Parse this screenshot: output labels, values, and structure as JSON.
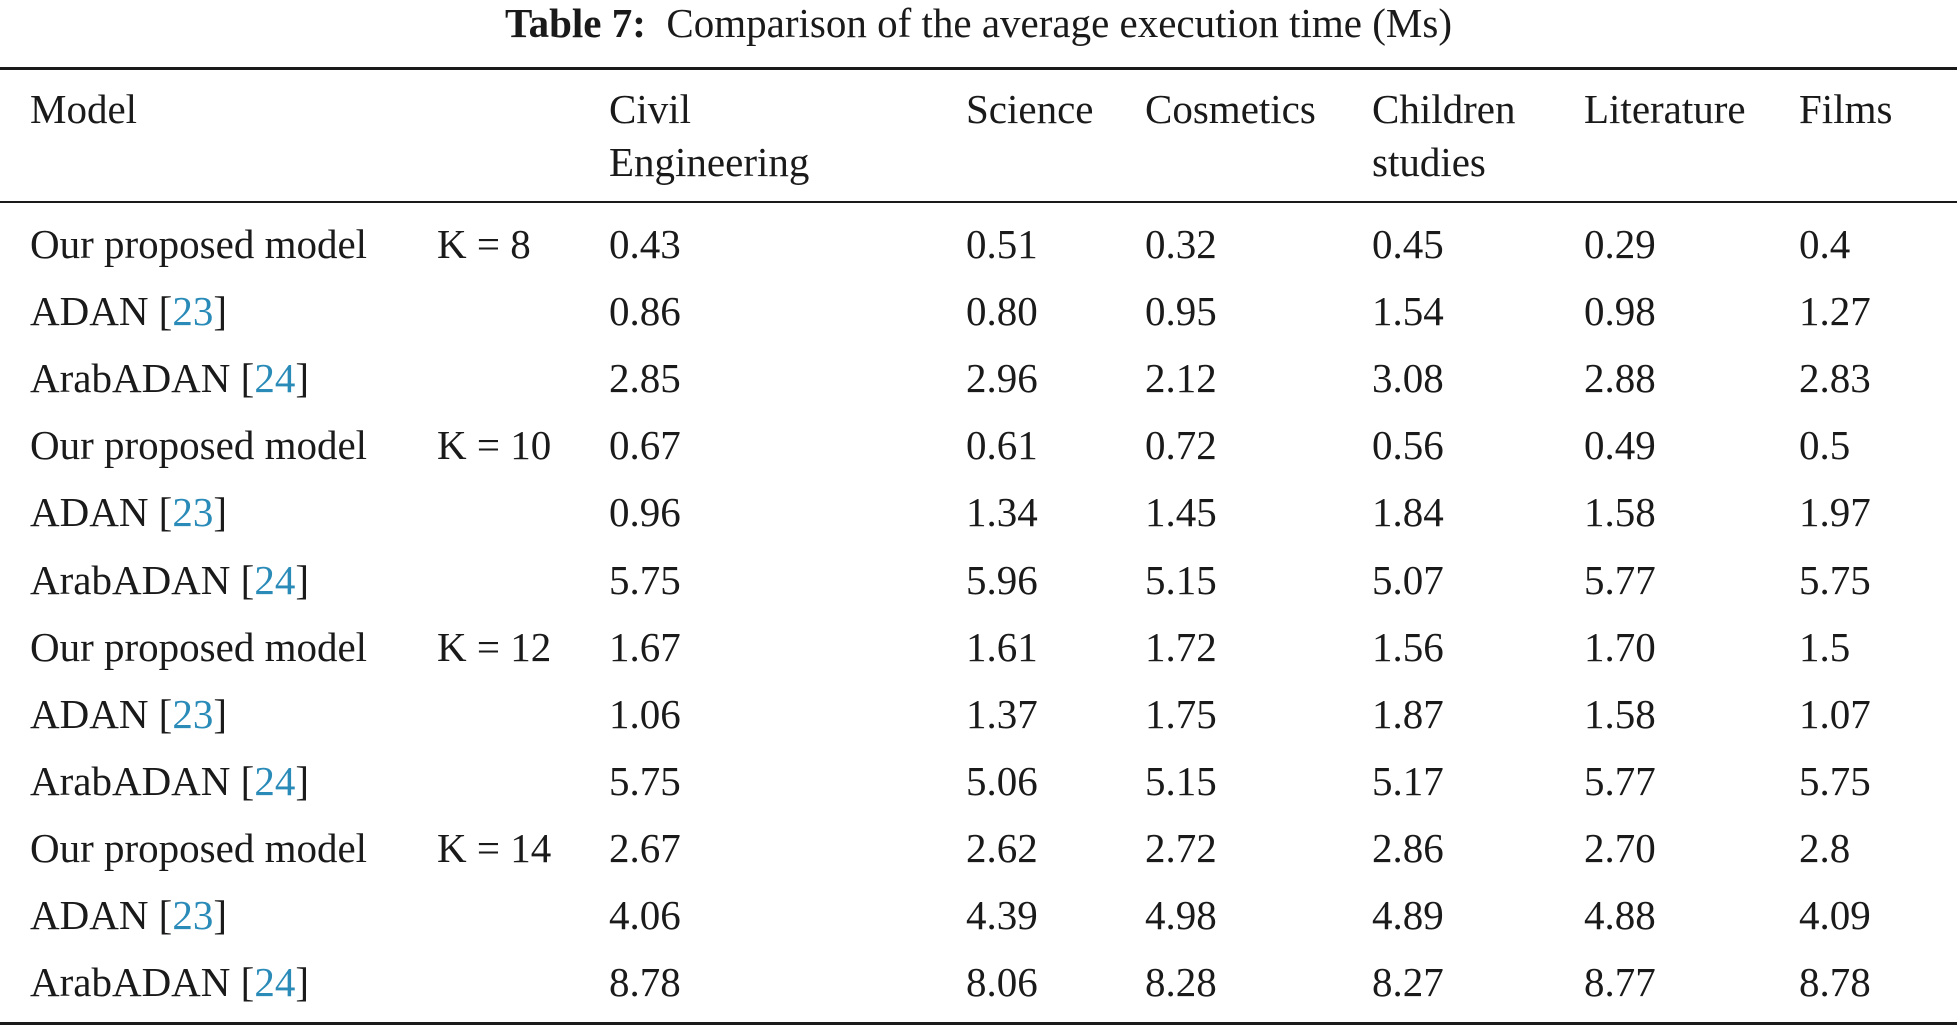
{
  "caption": {
    "label": "Table 7:",
    "text": "Comparison of the average execution time (Ms)"
  },
  "header": {
    "model": "Model",
    "civil_line1": "Civil",
    "civil_line2": "Engineering",
    "science": "Science",
    "cosmetics": "Cosmetics",
    "children_line1": "Children",
    "children_line2": "studies",
    "literature": "Literature",
    "films": "Films"
  },
  "rows": [
    {
      "model": "Our proposed model",
      "ref": "",
      "k": "K = 8",
      "civil": "0.43",
      "science": "0.51",
      "cosmetics": "0.32",
      "children": "0.45",
      "literature": "0.29",
      "films": "0.4"
    },
    {
      "model": "ADAN [",
      "ref": "23",
      "k": "",
      "civil": "0.86",
      "science": "0.80",
      "cosmetics": "0.95",
      "children": "1.54",
      "literature": "0.98",
      "films": "1.27"
    },
    {
      "model": "ArabADAN [",
      "ref": "24",
      "k": "",
      "civil": "2.85",
      "science": "2.96",
      "cosmetics": "2.12",
      "children": "3.08",
      "literature": "2.88",
      "films": "2.83"
    },
    {
      "model": "Our proposed model",
      "ref": "",
      "k": "K = 10",
      "civil": "0.67",
      "science": "0.61",
      "cosmetics": "0.72",
      "children": "0.56",
      "literature": "0.49",
      "films": "0.5"
    },
    {
      "model": "ADAN [",
      "ref": "23",
      "k": "",
      "civil": "0.96",
      "science": "1.34",
      "cosmetics": "1.45",
      "children": "1.84",
      "literature": "1.58",
      "films": "1.97"
    },
    {
      "model": "ArabADAN [",
      "ref": "24",
      "k": "",
      "civil": "5.75",
      "science": "5.96",
      "cosmetics": "5.15",
      "children": "5.07",
      "literature": "5.77",
      "films": "5.75"
    },
    {
      "model": "Our proposed model",
      "ref": "",
      "k": "K = 12",
      "civil": "1.67",
      "science": "1.61",
      "cosmetics": "1.72",
      "children": "1.56",
      "literature": "1.70",
      "films": "1.5"
    },
    {
      "model": "ADAN [",
      "ref": "23",
      "k": "",
      "civil": "1.06",
      "science": "1.37",
      "cosmetics": "1.75",
      "children": "1.87",
      "literature": "1.58",
      "films": "1.07"
    },
    {
      "model": "ArabADAN [",
      "ref": "24",
      "k": "",
      "civil": "5.75",
      "science": "5.06",
      "cosmetics": "5.15",
      "children": "5.17",
      "literature": "5.77",
      "films": "5.75"
    },
    {
      "model": "Our proposed model",
      "ref": "",
      "k": "K = 14",
      "civil": "2.67",
      "science": "2.62",
      "cosmetics": "2.72",
      "children": "2.86",
      "literature": "2.70",
      "films": "2.8"
    },
    {
      "model": "ADAN [",
      "ref": "23",
      "k": "",
      "civil": "4.06",
      "science": "4.39",
      "cosmetics": "4.98",
      "children": "4.89",
      "literature": "4.88",
      "films": "4.09"
    },
    {
      "model": "ArabADAN [",
      "ref": "24",
      "k": "",
      "civil": "8.78",
      "science": "8.06",
      "cosmetics": "8.28",
      "children": "8.27",
      "literature": "8.77",
      "films": "8.78"
    }
  ]
}
